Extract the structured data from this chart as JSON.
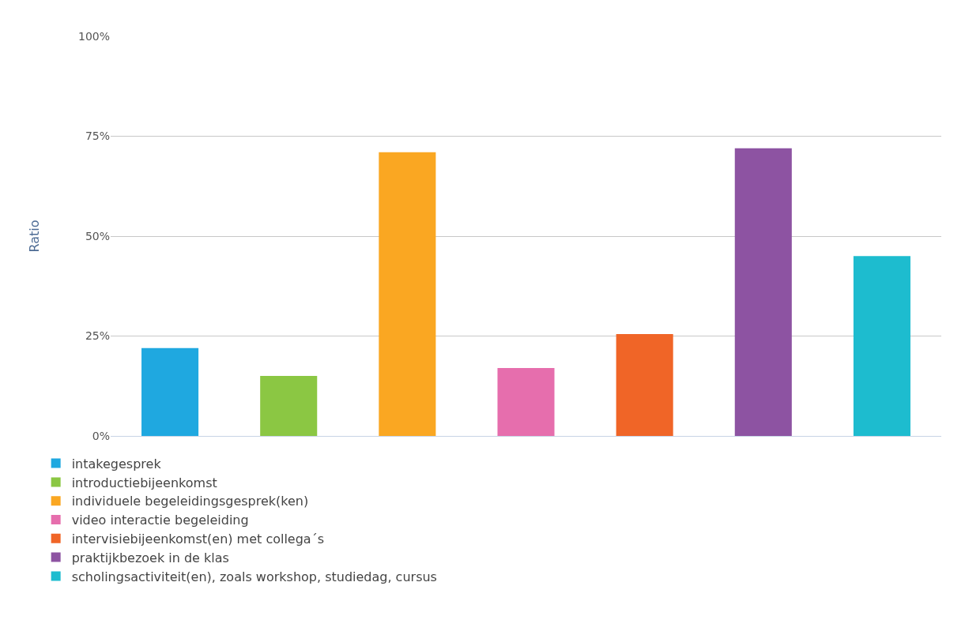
{
  "chart_data": {
    "type": "bar",
    "ylabel": "Ratio",
    "categories": [
      null,
      null,
      null,
      null,
      null,
      null,
      null
    ],
    "series": [
      {
        "name": "intakegesprek",
        "color": "#1fa8e0",
        "values": [
          22,
          null,
          null,
          null,
          null,
          null,
          null
        ]
      },
      {
        "name": "introductiebijeenkomst",
        "color": "#8bc743",
        "values": [
          null,
          15,
          null,
          null,
          null,
          null,
          null
        ]
      },
      {
        "name": "individuele begeleidingsgesprek(ken)",
        "color": "#faa722",
        "values": [
          null,
          null,
          71,
          null,
          null,
          null,
          null
        ]
      },
      {
        "name": "video interactie begeleiding",
        "color": "#e66ead",
        "values": [
          null,
          null,
          null,
          17,
          null,
          null,
          null
        ]
      },
      {
        "name": "intervisiebijeenkomst(en) met collega´s",
        "color": "#f06527",
        "values": [
          null,
          null,
          null,
          null,
          25.5,
          null,
          null
        ]
      },
      {
        "name": "praktijkbezoek in de klas",
        "color": "#8d53a2",
        "values": [
          null,
          null,
          null,
          null,
          null,
          72,
          null
        ]
      },
      {
        "name": "scholingsactiviteit(en), zoals workshop, studiedag, cursus",
        "color": "#1dbccf",
        "values": [
          null,
          null,
          null,
          null,
          null,
          null,
          45
        ]
      }
    ],
    "ylim": [
      0,
      100
    ],
    "yticks": [
      {
        "value": 0,
        "label": "0%"
      },
      {
        "value": 25,
        "label": "25%"
      },
      {
        "value": 50,
        "label": "50%"
      },
      {
        "value": 75,
        "label": "75%"
      },
      {
        "value": 100,
        "label": "100%"
      }
    ],
    "grid": "y",
    "legend": "bottom left"
  }
}
